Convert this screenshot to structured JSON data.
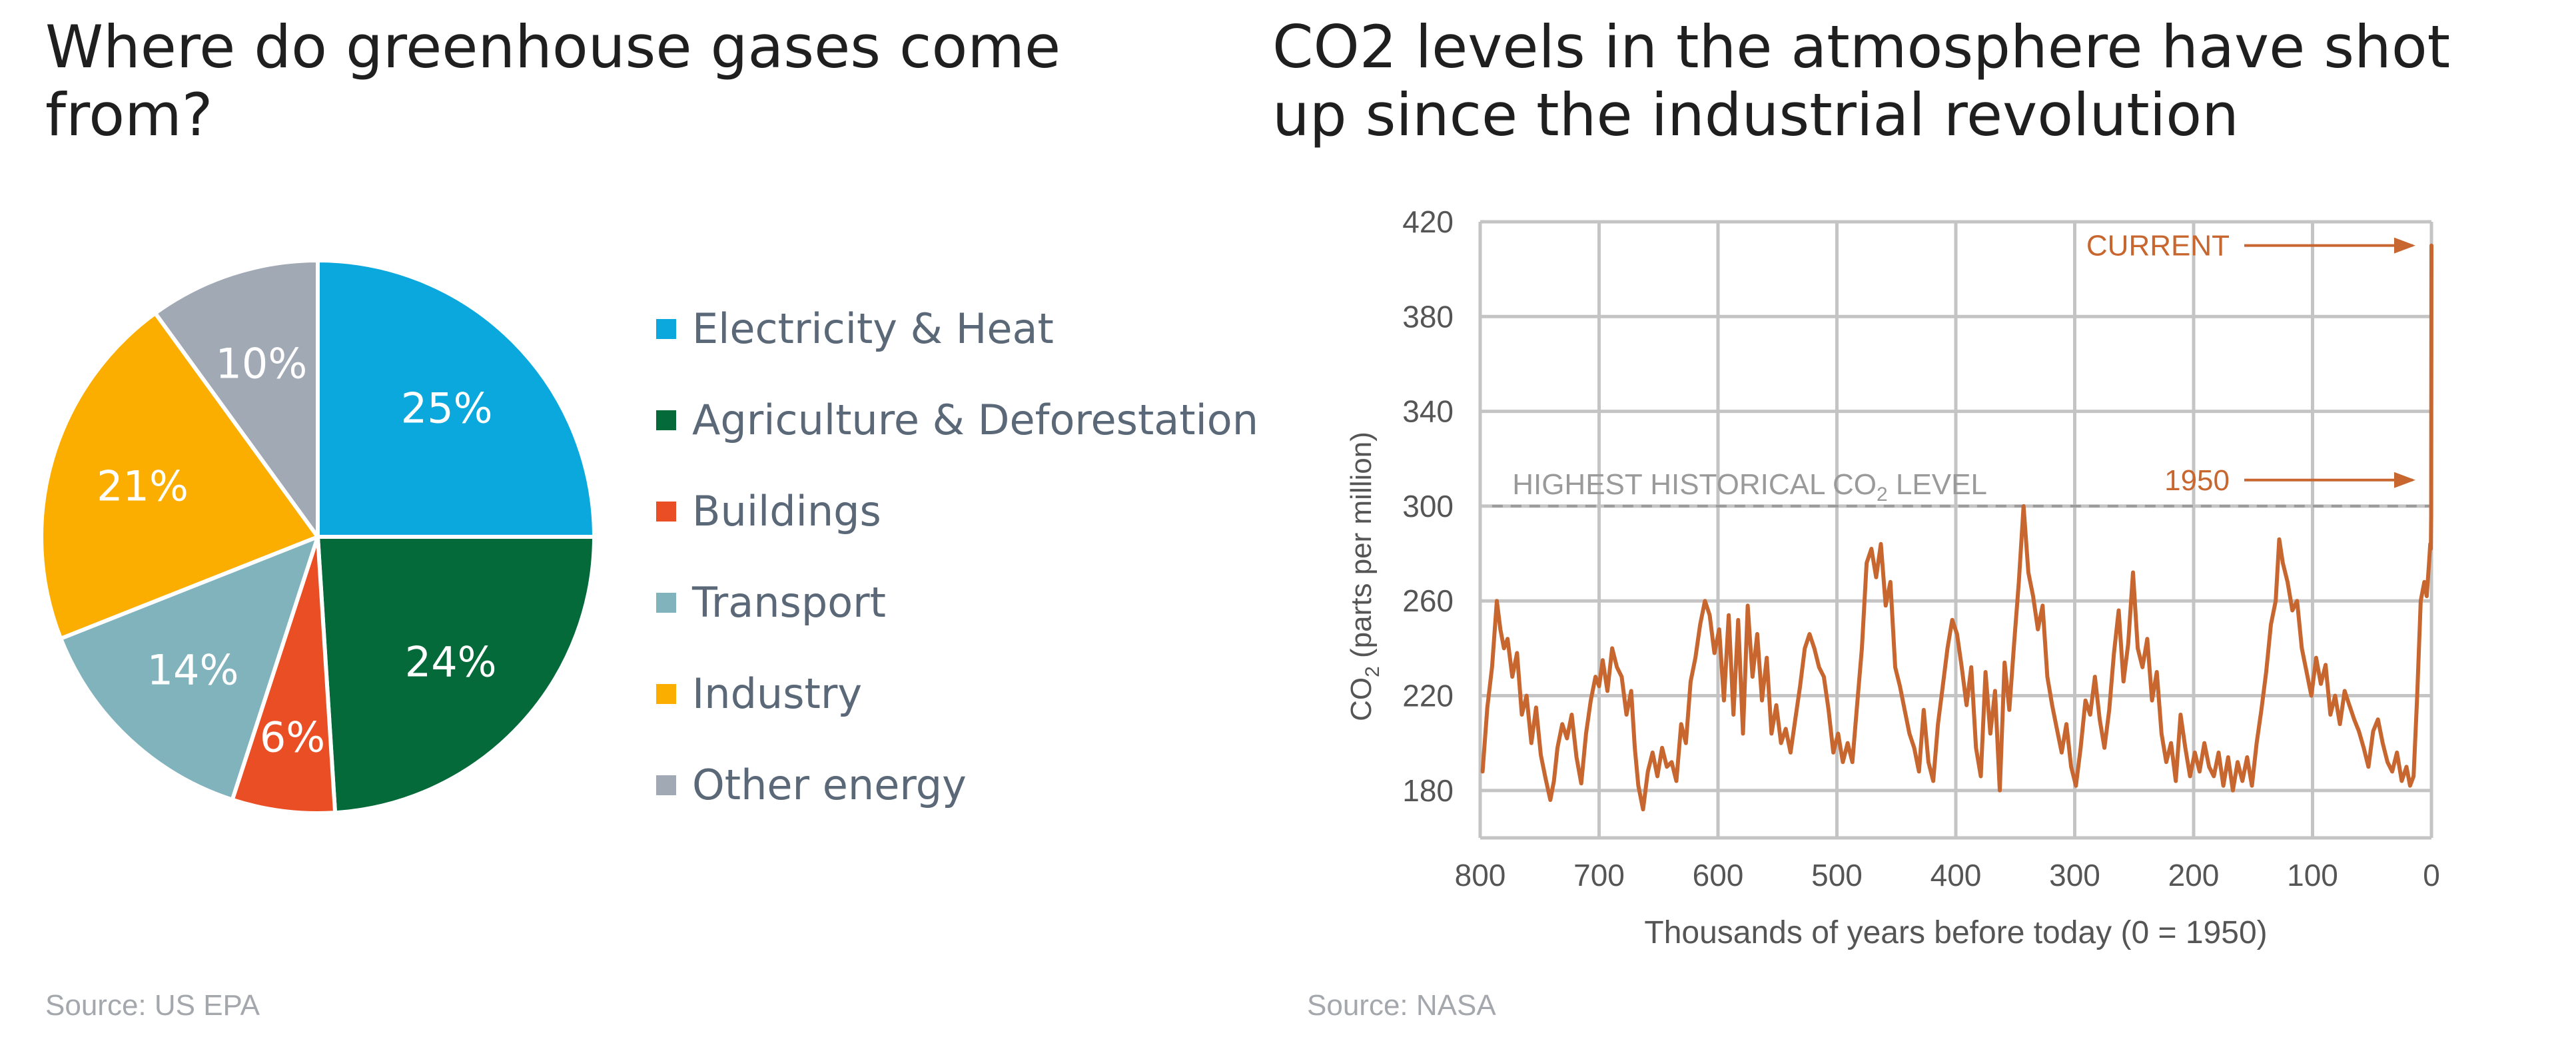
{
  "left_panel": {
    "title": "Where do greenhouse gases come from?",
    "source": "Source: US EPA"
  },
  "right_panel": {
    "title": "CO2 levels in the atmosphere have shot up since the industrial revolution",
    "source": "Source: NASA"
  },
  "chart_data": [
    {
      "type": "pie",
      "slices": [
        {
          "label": "Electricity & Heat",
          "value": 25,
          "value_label": "25%",
          "color": "#0ba8de"
        },
        {
          "label": "Agriculture & Deforestation",
          "value": 24,
          "value_label": "24%",
          "color": "#046a3a"
        },
        {
          "label": "Buildings",
          "value": 6,
          "value_label": "6%",
          "color": "#ea4e24"
        },
        {
          "label": "Transport",
          "value": 14,
          "value_label": "14%",
          "color": "#81b3bd"
        },
        {
          "label": "Industry",
          "value": 21,
          "value_label": "21%",
          "color": "#fbae00"
        },
        {
          "label": "Other energy",
          "value": 10,
          "value_label": "10%",
          "color": "#a1a9b5"
        }
      ],
      "legend_position": "right"
    },
    {
      "type": "line",
      "xlabel": "Thousands of years before today (0 = 1950)",
      "ylabel": "CO",
      "ylabel_subscript": "2",
      "ylabel_suffix": "(parts per million)",
      "xlim": [
        800,
        0
      ],
      "ylim": [
        160,
        420
      ],
      "x_ticks": [
        800,
        700,
        600,
        500,
        400,
        300,
        200,
        100,
        0
      ],
      "x_tick_labels": [
        "800",
        "700",
        "600",
        "500",
        "400",
        "300",
        "200",
        "100",
        "0"
      ],
      "y_ticks": [
        180,
        220,
        260,
        300,
        340,
        380,
        420
      ],
      "y_tick_labels": [
        "180",
        "220",
        "260",
        "300",
        "340",
        "380",
        "420"
      ],
      "grid": true,
      "color": "#c8662f",
      "reference_line": {
        "y": 300,
        "label": "HIGHEST HISTORICAL CO",
        "label_subscript": "2",
        "label_suffix": "LEVEL",
        "color": "#9a9a9a"
      },
      "annotations": [
        {
          "text": "CURRENT",
          "x": 0,
          "y": 410
        },
        {
          "text": "1950",
          "x": 0,
          "y": 311
        }
      ],
      "series": [
        {
          "x": [
            798,
            794,
            790,
            786,
            783,
            780,
            777,
            773,
            769,
            765,
            761,
            757,
            753,
            749,
            745,
            741,
            738,
            735,
            731,
            727,
            723,
            719,
            715,
            711,
            707,
            703,
            700,
            697,
            693,
            689,
            685,
            681,
            677,
            673,
            670,
            667,
            663,
            659,
            655,
            651,
            647,
            643,
            639,
            635,
            631,
            627,
            623,
            619,
            615,
            611,
            607,
            603,
            599,
            595,
            591,
            587,
            583,
            579,
            575,
            571,
            567,
            563,
            559,
            555,
            551,
            547,
            543,
            539,
            535,
            531,
            527,
            523,
            519,
            515,
            511,
            507,
            503,
            499,
            495,
            491,
            487,
            483,
            479,
            475,
            471,
            467,
            463,
            459,
            455,
            451,
            447,
            443,
            439,
            435,
            431,
            427,
            423,
            419,
            415,
            411,
            407,
            403,
            399,
            395,
            391,
            387,
            383,
            379,
            375,
            371,
            367,
            363,
            359,
            355,
            351,
            347,
            343,
            339,
            335,
            331,
            327,
            323,
            319,
            315,
            311,
            307,
            303,
            299,
            295,
            291,
            287,
            283,
            279,
            275,
            271,
            267,
            263,
            259,
            255,
            251,
            247,
            243,
            239,
            235,
            231,
            227,
            223,
            219,
            215,
            211,
            207,
            203,
            199,
            195,
            191,
            187,
            183,
            179,
            175,
            171,
            167,
            163,
            159,
            155,
            151,
            147,
            143,
            139,
            135,
            131,
            128,
            125,
            121,
            117,
            113,
            109,
            105,
            101,
            97,
            93,
            89,
            85,
            81,
            77,
            73,
            69,
            65,
            61,
            57,
            53,
            49,
            45,
            41,
            37,
            33,
            29,
            25,
            21,
            18,
            15,
            12,
            9,
            6,
            4,
            2,
            1,
            0.5,
            0.2,
            0
          ],
          "y": [
            188,
            215,
            232,
            260,
            248,
            240,
            244,
            228,
            238,
            212,
            220,
            200,
            215,
            195,
            185,
            176,
            184,
            198,
            208,
            202,
            212,
            194,
            183,
            204,
            218,
            228,
            224,
            235,
            222,
            240,
            232,
            228,
            212,
            222,
            198,
            182,
            172,
            188,
            196,
            186,
            198,
            190,
            192,
            184,
            208,
            200,
            226,
            236,
            250,
            260,
            254,
            238,
            248,
            218,
            254,
            212,
            252,
            204,
            258,
            228,
            246,
            218,
            236,
            204,
            216,
            200,
            206,
            196,
            210,
            224,
            240,
            246,
            240,
            232,
            228,
            214,
            196,
            204,
            192,
            200,
            192,
            216,
            240,
            276,
            282,
            270,
            284,
            258,
            268,
            232,
            224,
            214,
            204,
            198,
            188,
            214,
            192,
            184,
            208,
            224,
            240,
            252,
            246,
            232,
            216,
            232,
            198,
            186,
            230,
            204,
            222,
            180,
            234,
            214,
            242,
            268,
            300,
            272,
            262,
            248,
            258,
            228,
            216,
            206,
            196,
            208,
            190,
            182,
            198,
            218,
            212,
            228,
            210,
            198,
            214,
            238,
            256,
            226,
            242,
            272,
            240,
            232,
            244,
            218,
            230,
            204,
            192,
            200,
            184,
            212,
            198,
            186,
            196,
            188,
            200,
            190,
            186,
            196,
            182,
            194,
            180,
            192,
            184,
            194,
            182,
            200,
            214,
            230,
            250,
            260,
            286,
            276,
            268,
            256,
            260,
            240,
            230,
            220,
            236,
            225,
            233,
            212,
            220,
            208,
            222,
            216,
            210,
            205,
            198,
            190,
            205,
            210,
            200,
            192,
            188,
            196,
            184,
            190,
            182,
            186,
            220,
            260,
            268,
            262,
            276,
            284,
            282,
            296,
            410
          ]
        }
      ]
    }
  ]
}
